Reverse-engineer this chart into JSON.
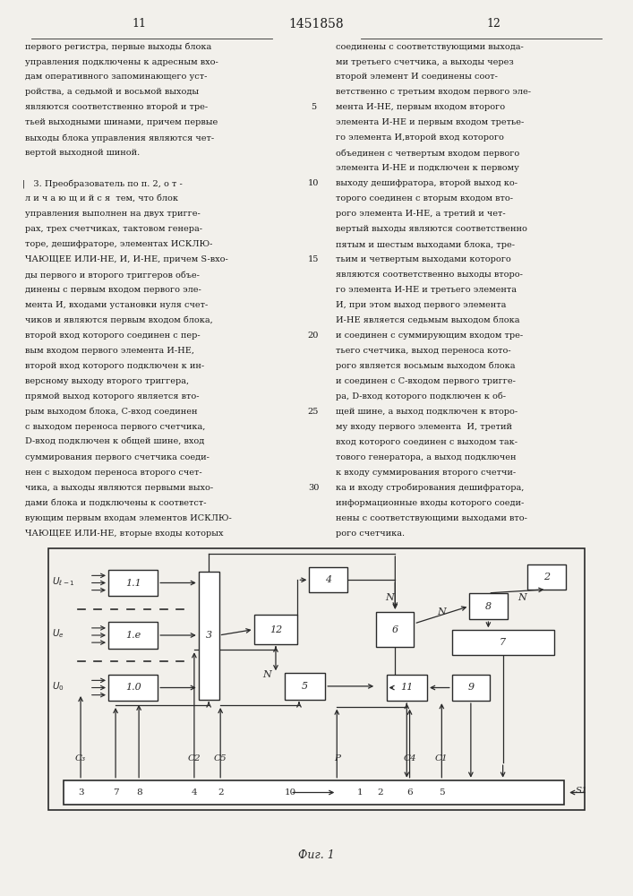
{
  "title_center": "1451858",
  "page_left": "11",
  "page_right": "12",
  "fig_caption": "Фиг. 1",
  "background_color": "#f2f0eb",
  "text_color": "#1a1a1a",
  "line_color": "#2a2a2a",
  "left_column_text": [
    "первого регистра, первые выходы блока",
    "управления подключены к адресным вхо-",
    "дам оперативного запоминающего уст-",
    "ройства, а седьмой и восьмой выходы",
    "являются соответственно второй и тре-",
    "тьей выходными шинами, причем первые",
    "выходы блока управления являются чет-",
    "вертой выходной шиной.",
    "",
    "   3. Преобразователь по п. 2, о т -",
    "л и ч а ю щ и й с я  тем, что блок",
    "управления выполнен на двух тригге-",
    "рах, трех счетчиках, тактовом генера-",
    "торе, дешифраторе, элементах ИСКЛЮ-",
    "ЧАЮЩЕЕ ИЛИ-НЕ, И, И-НЕ, причем S-вхо-",
    "ды первого и второго триггеров объе-",
    "динены с первым входом первого эле-",
    "мента И, входами установки нуля счет-",
    "чиков и являются первым входом блока,",
    "второй вход которого соединен с пер-",
    "вым входом первого элемента И-НЕ,",
    "второй вход которого подключен к ин-",
    "версному выходу второго триггера,",
    "прямой выход которого является вто-",
    "рым выходом блока, C-вход соединен",
    "с выходом переноса первого счетчика,",
    "D-вход подключен к общей шине, вход",
    "суммирования первого счетчика соеди-",
    "нен с выходом переноса второго счет-",
    "чика, а выходы являются первыми выхо-",
    "дами блока и подключены к соответст-",
    "вующим первым входам элементов ИСКЛЮ-",
    "ЧАЮЩЕЕ ИЛИ-НЕ, вторые входы которых"
  ],
  "right_column_text": [
    "соединены с соответствующими выхода-",
    "ми третьего счетчика, а выходы через",
    "второй элемент И соединены соот-",
    "ветственно с третьим входом первого эле-",
    "мента И-НЕ, первым входом второго",
    "элемента И-НЕ и первым входом третье-",
    "го элемента И,второй вход которого",
    "объединен с четвертым входом первого",
    "элемента И-НЕ и подключен к первому",
    "выходу дешифратора, второй выход ко-",
    "торого соединен с вторым входом вто-",
    "рого элемента И-НЕ, а третий и чет-",
    "вертый выходы являются соответственно",
    "пятым и шестым выходами блока, тре-",
    "тьим и четвертым выходами которого",
    "являются соответственно выходы второ-",
    "го элемента И-НЕ и третьего элемента",
    "И, при этом выход первого элемента",
    "И-НЕ является седьмым выходом блока",
    "и соединен с суммирующим входом тре-",
    "тьего счетчика, выход переноса кото-",
    "рого является восьмым выходом блока",
    "и соединен с C-входом первого тригге-",
    "ра, D-вход которого подключен к об-",
    "щей шине, а выход подключен к второ-",
    "му входу первого элемента  И, третий",
    "вход которого соединен с выходом так-",
    "тового генератора, а выход подключен",
    "к входу суммирования второго счетчи-",
    "ка и входу стробирования дешифратора,",
    "информационные входы которого соеди-",
    "нены с соответствующими выходами вто-",
    "рого счетчика."
  ]
}
